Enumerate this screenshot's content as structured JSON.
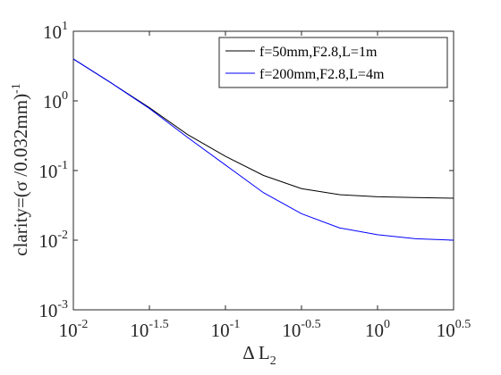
{
  "chart_data": {
    "type": "line",
    "xlabel": {
      "text": "Δ L",
      "subscript": "2"
    },
    "ylabel": {
      "text": "clarity=(σ /0.032mm)",
      "superscript": "-1"
    },
    "x": [
      0.01,
      0.0178,
      0.0316,
      0.0562,
      0.1,
      0.178,
      0.316,
      0.562,
      1,
      1.78,
      3.16
    ],
    "series": [
      {
        "name": "f=50mm,F2.8,L=1m",
        "color": "#000000",
        "values": [
          4,
          1.8,
          0.8,
          0.33,
          0.16,
          0.085,
          0.055,
          0.045,
          0.042,
          0.041,
          0.04
        ]
      },
      {
        "name": "f=200mm,F2.8,L=4m",
        "color": "#0000ff",
        "values": [
          4,
          1.8,
          0.78,
          0.3,
          0.12,
          0.048,
          0.024,
          0.015,
          0.012,
          0.0105,
          0.01
        ]
      }
    ],
    "xscale": "log",
    "yscale": "log",
    "xlim": [
      0.01,
      3.1623
    ],
    "ylim": [
      0.001,
      10
    ],
    "xticks": [
      {
        "value": 0.01,
        "label": "10",
        "exponent": "-2"
      },
      {
        "value": 0.031623,
        "label": "10",
        "exponent": "-1.5"
      },
      {
        "value": 0.1,
        "label": "10",
        "exponent": "-1"
      },
      {
        "value": 0.31623,
        "label": "10",
        "exponent": "-0.5"
      },
      {
        "value": 1,
        "label": "10",
        "exponent": "0"
      },
      {
        "value": 3.1623,
        "label": "10",
        "exponent": "0.5"
      }
    ],
    "yticks": [
      {
        "value": 0.001,
        "label": "10",
        "exponent": "-3"
      },
      {
        "value": 0.01,
        "label": "10",
        "exponent": "-2"
      },
      {
        "value": 0.1,
        "label": "10",
        "exponent": "-1"
      },
      {
        "value": 1,
        "label": "10",
        "exponent": "0"
      },
      {
        "value": 10,
        "label": "10",
        "exponent": "1"
      }
    ],
    "grid": false,
    "legend": "upper-right"
  }
}
